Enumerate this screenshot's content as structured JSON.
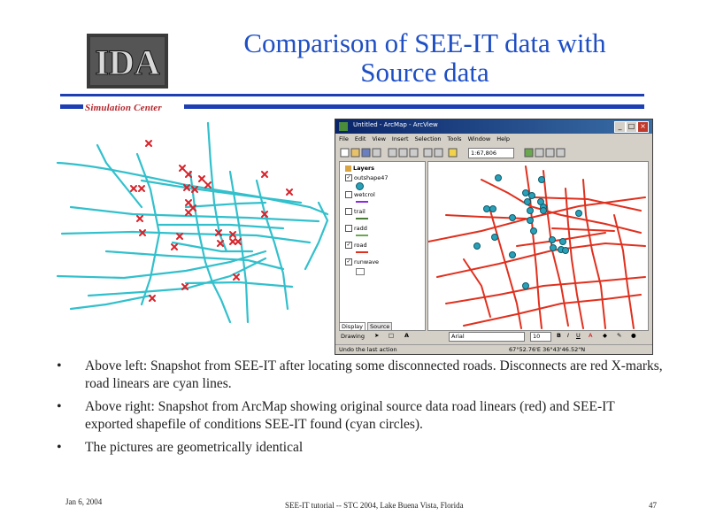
{
  "slide": {
    "title_line1": "Comparison of SEE-IT data with",
    "title_line2": "Source data",
    "org_label": "Simulation Center",
    "logo_text": "IDA"
  },
  "arcmap": {
    "window_title": "Untitled - ArcMap - ArcView",
    "menu": [
      "File",
      "Edit",
      "View",
      "Insert",
      "Selection",
      "Tools",
      "Window",
      "Help"
    ],
    "scale": "1:67,806",
    "toc_header": "Layers",
    "layers": [
      {
        "name": "outshape47",
        "checked": true
      },
      {
        "name": "wetcrol",
        "checked": false
      },
      {
        "name": "trail",
        "checked": false
      },
      {
        "name": "radd",
        "checked": false
      },
      {
        "name": "road",
        "checked": true
      },
      {
        "name": "runwave",
        "checked": true
      }
    ],
    "tabs": [
      "Display",
      "Source"
    ],
    "drawing_label": "Drawing",
    "font_name": "Arial",
    "font_size": "10",
    "status_left": "Undo the last action",
    "status_coords": "67°52.76'E  36°43'46.52\"N",
    "colors": {
      "road": "#e0301e",
      "circle": "#2aa0b8",
      "titlebar": "#0a246a"
    }
  },
  "left_map": {
    "road_color": "#32c0cc",
    "mark_color": "#d8232a"
  },
  "bullets": [
    "Above left:  Snapshot from SEE-IT after locating some disconnected roads.  Disconnects are red X-marks, road linears are cyan lines.",
    "Above right:  Snapshot from ArcMap showing original source data road linears (red) and SEE-IT exported shapefile of conditions SEE-IT found (cyan circles).",
    "The pictures are geometrically identical"
  ],
  "bullet_symbol": "•",
  "footer": {
    "date": "Jan 6, 2004",
    "center": "SEE-IT tutorial -- STC 2004, Lake Buena Vista, Florida",
    "page": "47"
  }
}
